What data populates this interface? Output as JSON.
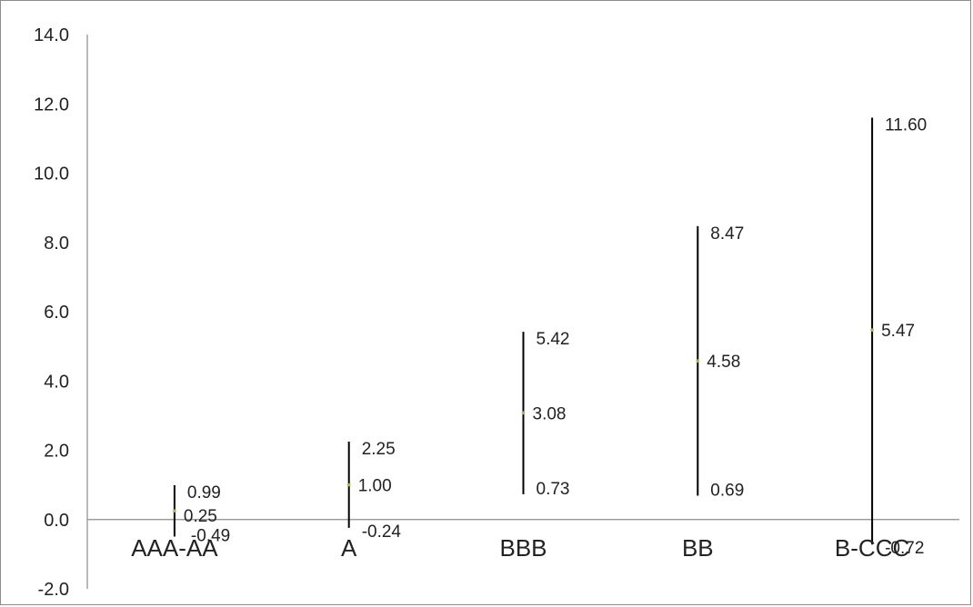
{
  "chart_data": {
    "type": "range",
    "categories": [
      "AAA-AA",
      "A",
      "BBB",
      "BB",
      "B-CCC"
    ],
    "series": [
      {
        "high": 0.99,
        "mid": 0.25,
        "low": -0.49
      },
      {
        "high": 2.25,
        "mid": 1.0,
        "low": -0.24
      },
      {
        "high": 5.42,
        "mid": 3.08,
        "low": 0.73
      },
      {
        "high": 8.47,
        "mid": 4.58,
        "low": 0.69
      },
      {
        "high": 11.6,
        "mid": 5.47,
        "low": -0.72
      }
    ],
    "labels": [
      {
        "high": "0.99",
        "mid": "0.25",
        "low": "-0.49"
      },
      {
        "high": "2.25",
        "mid": "1.00",
        "low": "-0.24"
      },
      {
        "high": "5.42",
        "mid": "3.08",
        "low": "0.73"
      },
      {
        "high": "8.47",
        "mid": "4.58",
        "low": "0.69"
      },
      {
        "high": "11.60",
        "mid": "5.47",
        "low": "-0.72"
      }
    ],
    "ylim": [
      -2,
      14
    ],
    "yticks": [
      "-2.0",
      "0.0",
      "2.0",
      "4.0",
      "6.0",
      "8.0",
      "10.0",
      "12.0",
      "14.0"
    ],
    "title": "",
    "xlabel": "",
    "ylabel": "",
    "grid": false,
    "colors": {
      "range_line": "#000000",
      "mid_marker": "#9bbb59",
      "axis": "#8c8c8c"
    }
  }
}
